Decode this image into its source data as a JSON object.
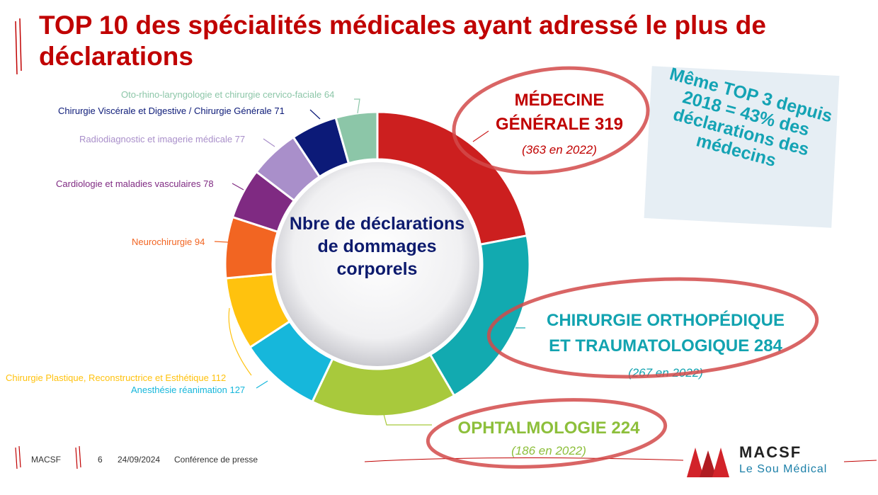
{
  "slide": {
    "title": "TOP 10 des spécialités médicales ayant adressé le plus de déclarations",
    "center_label": "Nbre de déclarations de dommages corporels"
  },
  "chart_data": {
    "type": "pie",
    "donut": true,
    "slices": [
      {
        "label": "MÉDECINE GÉNÉRALE 319",
        "name": "MÉDECINE GÉNÉRALE",
        "value": 319,
        "color": "#cc1f1f",
        "sub": "(363 en 2022)"
      },
      {
        "label": "CHIRURGIE ORTHOPÉDIQUE ET TRAUMATOLOGIQUE 284",
        "name": "CHIRURGIE ORTHOPÉDIQUE ET TRAUMATOLOGIQUE",
        "value": 284,
        "color": "#12aab0",
        "sub": "(267 en 2022)"
      },
      {
        "label": "OPHTALMOLOGIE 224",
        "name": "OPHTALMOLOGIE",
        "value": 224,
        "color": "#a8c93c",
        "sub": "(186 en 2022)"
      },
      {
        "label": "Anesthésie réanimation 127",
        "name": "Anesthésie réanimation",
        "value": 127,
        "color": "#16b7db"
      },
      {
        "label": "Chirurgie Plastique, Reconstructrice et Esthétique 112",
        "name": "Chirurgie Plastique, Reconstructrice et Esthétique",
        "value": 112,
        "color": "#ffc20e"
      },
      {
        "label": "Neurochirurgie 94",
        "name": "Neurochirurgie",
        "value": 94,
        "color": "#f26522"
      },
      {
        "label": "Cardiologie et maladies vasculaires 78",
        "name": "Cardiologie et maladies vasculaires",
        "value": 78,
        "color": "#7f2a82"
      },
      {
        "label": "Radiodiagnostic et imagerie médicale 77",
        "name": "Radiodiagnostic et imagerie médicale",
        "value": 77,
        "color": "#a98fca"
      },
      {
        "label": "Chirurgie Viscérale et Digestive / Chirurgie Générale 71",
        "name": "Chirurgie Viscérale et Digestive / Chirurgie Générale",
        "value": 71,
        "color": "#0c1a78"
      },
      {
        "label": "Oto-rhino-laryngologie et chirurgie cervico-faciale 64",
        "name": "Oto-rhino-laryngologie et chirurgie cervico-faciale",
        "value": 64,
        "color": "#8cc6a8"
      }
    ]
  },
  "callouts": {
    "medecine": {
      "line1": "MÉDECINE",
      "line2": "GÉNÉRALE 319",
      "sub": "(363 en 2022)"
    },
    "chirurgie": {
      "line1": "CHIRURGIE ORTHOPÉDIQUE",
      "line2": "ET TRAUMATOLOGIQUE 284",
      "sub": "(267 en 2022)"
    },
    "ophtalmo": {
      "line1": "OPHTALMOLOGIE 224",
      "sub": "(186 en 2022)"
    }
  },
  "note": {
    "text": "Même TOP 3 depuis 2018 = 43% des déclarations des médecins"
  },
  "footer": {
    "company": "MACSF",
    "page": "6",
    "date": "24/09/2024",
    "event": "Conférence de presse"
  },
  "logo": {
    "name": "MACSF",
    "subtitle": "Le Sou Médical"
  },
  "colors": {
    "title": "#c00000",
    "accent_teal": "#14a3b4",
    "circle_red": "#d24a4a"
  }
}
